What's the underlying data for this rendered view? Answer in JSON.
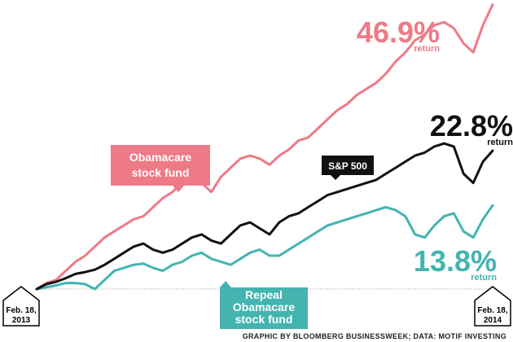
{
  "chart_data": {
    "type": "line",
    "x_start": "Feb. 18, 2013",
    "x_end": "Feb. 18, 2014",
    "ylabel": "",
    "ylim": [
      -5,
      50
    ],
    "series": [
      {
        "name": "Obamacare stock fund",
        "color": "#ee7a87",
        "end_return": 46.9,
        "values": [
          0,
          1.0,
          1.5,
          3.0,
          4.5,
          5.5,
          7.0,
          8.5,
          9.5,
          10.5,
          11.5,
          12.0,
          13.5,
          15.0,
          16.0,
          17.5,
          18.5,
          17.5,
          16.0,
          18.5,
          20.0,
          21.5,
          22.0,
          21.5,
          20.5,
          22.0,
          23.0,
          24.5,
          25.0,
          26.5,
          28.0,
          29.5,
          30.5,
          32.0,
          33.0,
          34.0,
          35.5,
          37.5,
          39.0,
          41.0,
          42.0,
          43.5,
          44.0,
          43.0,
          40.5,
          39.0,
          43.5,
          46.9
        ]
      },
      {
        "name": "S&P 500",
        "color": "#111111",
        "end_return": 22.8,
        "values": [
          0,
          0.8,
          1.2,
          1.8,
          2.5,
          2.8,
          3.2,
          4.0,
          5.0,
          6.0,
          7.0,
          7.5,
          6.5,
          6.0,
          6.5,
          7.5,
          8.5,
          9.0,
          8.0,
          7.5,
          9.0,
          10.5,
          11.0,
          10.0,
          9.0,
          11.0,
          12.0,
          12.5,
          13.5,
          14.5,
          15.5,
          16.0,
          16.5,
          17.0,
          17.5,
          18.0,
          19.0,
          20.0,
          21.0,
          22.0,
          22.5,
          23.5,
          24.0,
          23.5,
          19.0,
          17.5,
          21.0,
          22.8
        ]
      },
      {
        "name": "Repeal Obamacare stock fund",
        "color": "#43b4b0",
        "end_return": 13.8,
        "values": [
          0,
          0.3,
          0.6,
          1.0,
          1.0,
          0.8,
          0.0,
          1.5,
          3.0,
          3.5,
          4.0,
          4.2,
          3.5,
          3.0,
          4.0,
          4.5,
          5.5,
          6.0,
          5.0,
          4.5,
          4.0,
          5.0,
          6.0,
          6.5,
          5.5,
          5.5,
          6.5,
          7.5,
          8.5,
          9.5,
          10.5,
          11.0,
          11.5,
          12.0,
          12.5,
          13.0,
          13.5,
          13.0,
          12.0,
          9.0,
          8.5,
          10.5,
          12.0,
          12.5,
          9.5,
          8.5,
          11.5,
          13.8
        ]
      }
    ]
  },
  "labels": {
    "obamacare_pct": "46.9%",
    "obamacare_return": "return",
    "sp_pct": "22.8%",
    "sp_return": "return",
    "repeal_pct": "13.8%",
    "repeal_return": "return",
    "obamacare_tag_line1": "Obamacare",
    "obamacare_tag_line2": "stock fund",
    "sp_tag": "S&P 500",
    "repeal_tag_line1": "Repeal",
    "repeal_tag_line2": "Obamacare",
    "repeal_tag_line3": "stock fund",
    "start_date_line1": "Feb. 18,",
    "start_date_line2": "2013",
    "end_date_line1": "Feb. 18,",
    "end_date_line2": "2014",
    "credit": "GRAPHIC BY BLOOMBERG BUSINESSWEEK; DATA: MOTIF INVESTING"
  },
  "colors": {
    "pink": "#ee7a87",
    "black": "#111111",
    "teal": "#43b4b0",
    "baseline": "#999999"
  }
}
